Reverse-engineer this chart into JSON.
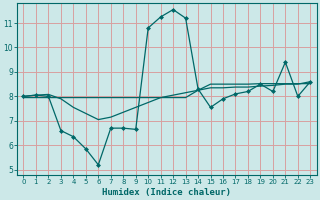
{
  "xlabel": "Humidex (Indice chaleur)",
  "xlim": [
    -0.5,
    23.5
  ],
  "ylim": [
    4.8,
    11.8
  ],
  "yticks": [
    5,
    6,
    7,
    8,
    9,
    10,
    11
  ],
  "xticks": [
    0,
    1,
    2,
    3,
    4,
    5,
    6,
    7,
    8,
    9,
    10,
    11,
    12,
    13,
    14,
    15,
    16,
    17,
    18,
    19,
    20,
    21,
    22,
    23
  ],
  "bg_color": "#cce8e8",
  "grid_color": "#d8a0a0",
  "line_color": "#006868",
  "line1_x": [
    0,
    1,
    2,
    3,
    4,
    5,
    6,
    7,
    8,
    9,
    10,
    11,
    12,
    13,
    14,
    15,
    16,
    17,
    18,
    19,
    20,
    21,
    22,
    23
  ],
  "line1_y": [
    8.0,
    8.05,
    8.0,
    6.6,
    6.35,
    5.85,
    5.2,
    6.7,
    6.7,
    6.65,
    10.8,
    11.25,
    11.55,
    11.2,
    8.3,
    7.55,
    7.9,
    8.1,
    8.2,
    8.5,
    8.2,
    9.4,
    8.0,
    8.6
  ],
  "line2_x": [
    0,
    1,
    2,
    3,
    4,
    5,
    6,
    7,
    8,
    9,
    10,
    11,
    12,
    13,
    14,
    15,
    16,
    17,
    18,
    19,
    20,
    21,
    22,
    23
  ],
  "line2_y": [
    7.95,
    7.95,
    7.95,
    7.95,
    7.95,
    7.95,
    7.95,
    7.95,
    7.95,
    7.95,
    7.95,
    7.95,
    7.95,
    7.95,
    8.25,
    8.5,
    8.5,
    8.5,
    8.5,
    8.52,
    8.52,
    8.52,
    8.52,
    8.52
  ],
  "line3_x": [
    0,
    1,
    2,
    3,
    4,
    5,
    6,
    7,
    8,
    9,
    10,
    11,
    12,
    13,
    14,
    15,
    16,
    17,
    18,
    19,
    20,
    21,
    22,
    23
  ],
  "line3_y": [
    8.0,
    8.05,
    8.08,
    7.9,
    7.55,
    7.3,
    7.05,
    7.15,
    7.35,
    7.55,
    7.75,
    7.95,
    8.05,
    8.15,
    8.25,
    8.35,
    8.35,
    8.38,
    8.38,
    8.42,
    8.45,
    8.5,
    8.5,
    8.6
  ]
}
